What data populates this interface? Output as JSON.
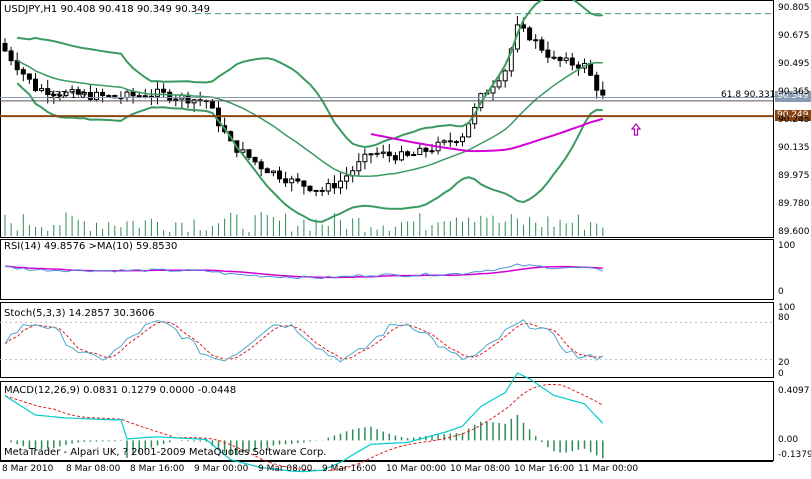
{
  "colors": {
    "candle": "#000000",
    "bollinger": "#3a9a60",
    "ma": "#d400d4",
    "rsi": "#4a90d9",
    "rsi_ma": "#d400d4",
    "stoch_main": "#4aa8d0",
    "stoch_signal": "#e02020",
    "macd_line": "#00cccc",
    "macd_hist": "#2e8b57",
    "macd_signal": "#e02020",
    "fib_line": "#8b4513",
    "price_line": "#8a9ab0",
    "arrow": "#b000b0"
  },
  "main": {
    "title": "USDJPY,H1  90.408 90.418 90.349 90.349",
    "mini_label": "337 1.0",
    "fib_label": "61.8  90.331",
    "price_tag": "90.349",
    "fib_tag": "90.249",
    "scale": [
      "90.805",
      "90.675",
      "90.495",
      "90.365",
      "90.245",
      "90.135",
      "89.975",
      "89.780",
      "89.600"
    ]
  },
  "rsi": {
    "title": "RSI(14) 49.8576   >MA(10) 59.8530",
    "scale": [
      "100",
      "0"
    ]
  },
  "stoch": {
    "title": "Stoch(5,3,3) 14.2857 30.3606",
    "scale": [
      "100",
      "80",
      "20",
      "0"
    ]
  },
  "macd": {
    "title": "MACD(12,26,9) 0.0831 0.1279 0.0000 -0.0448",
    "scale": [
      "0.4097",
      "0.00",
      "-0.1379"
    ]
  },
  "footer": "MetaTrader - Alpari UK, ? 2001-2009 MetaQuotes Software Corp.",
  "time_axis": [
    "8 Mar 2010",
    "8 Mar 08:00",
    "8 Mar 16:00",
    "9 Mar 00:00",
    "9 Mar 08:00",
    "9 Mar 16:00",
    "10 Mar 00:00",
    "10 Mar 08:00",
    "10 Mar 16:00",
    "11 Mar 00:00"
  ]
}
